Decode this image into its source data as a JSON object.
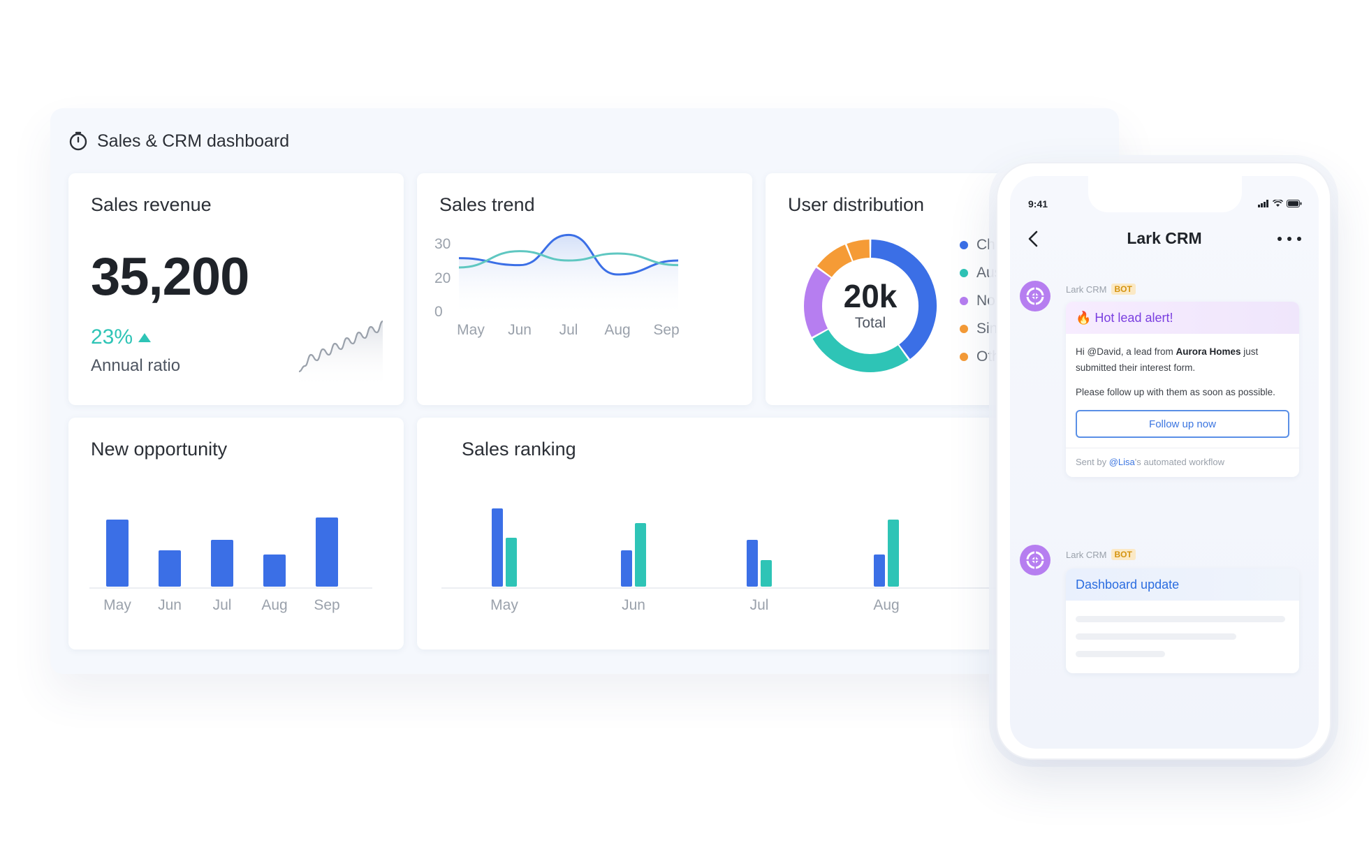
{
  "dashboard": {
    "title": "Sales & CRM dashboard",
    "icon": "timer-icon"
  },
  "revenue": {
    "title": "Sales revenue",
    "value": "35,200",
    "ratio": "23%",
    "ratio_label": "Annual ratio",
    "accent_color": "#2ec4b6"
  },
  "trend": {
    "title": "Sales trend"
  },
  "users": {
    "title": "User distribution",
    "center_value": "20k",
    "center_label": "Total",
    "legend": [
      {
        "label": "Chi",
        "color": "#3b6fe6"
      },
      {
        "label": "Aus",
        "color": "#2ec4b6"
      },
      {
        "label": "Nor",
        "color": "#b67ef0"
      },
      {
        "label": "Sin",
        "color": "#f59b36"
      },
      {
        "label": "Oth",
        "color": "#f59b36"
      }
    ]
  },
  "opportunity": {
    "title": "New opportunity"
  },
  "ranking": {
    "title": "Sales ranking"
  },
  "chart_data": [
    {
      "type": "line",
      "categories": [
        "May",
        "Jun",
        "Jul",
        "Aug",
        "Sep"
      ],
      "ylim": [
        0,
        30
      ],
      "yticks": [
        30,
        20,
        0
      ],
      "series": [
        {
          "color": "#3b6fe6",
          "values": [
            22,
            19,
            32,
            15,
            21
          ]
        },
        {
          "color": "#5fc7c1",
          "values": [
            18,
            25,
            21,
            24,
            19
          ]
        }
      ]
    },
    {
      "type": "pie",
      "slices": [
        {
          "label": "Chi",
          "value": 40,
          "color": "#3b6fe6"
        },
        {
          "label": "Aus",
          "value": 27,
          "color": "#2ec4b6"
        },
        {
          "label": "Nor",
          "value": 18,
          "color": "#b67ef0"
        },
        {
          "label": "Sin",
          "value": 9,
          "color": "#f59b36"
        },
        {
          "label": "Oth",
          "value": 6,
          "color": "#f59b36"
        }
      ]
    },
    {
      "type": "bar",
      "categories": [
        "May",
        "Jun",
        "Jul",
        "Aug",
        "Sep"
      ],
      "series": [
        {
          "color": "#3b6fe6",
          "values": [
            96,
            52,
            67,
            46,
            99
          ]
        }
      ],
      "ylim": [
        0,
        100
      ]
    },
    {
      "type": "bar",
      "categories": [
        "May",
        "Jun",
        "Jul",
        "Aug"
      ],
      "series": [
        {
          "color": "#3b6fe6",
          "values": [
            112,
            52,
            67,
            46
          ]
        },
        {
          "color": "#2ec4b6",
          "values": [
            70,
            91,
            38,
            96
          ]
        }
      ],
      "ylim": [
        0,
        120
      ]
    },
    {
      "type": "line",
      "series": [
        {
          "color": "#9aa1ab",
          "values": [
            2,
            3,
            5,
            4,
            6,
            5,
            7,
            6,
            8,
            7,
            9,
            8,
            10,
            9,
            11
          ]
        }
      ]
    }
  ],
  "phone": {
    "time": "9:41",
    "title": "Lark CRM",
    "bot_name": "Lark CRM",
    "bot_badge": "BOT",
    "alert_title": "🔥 Hot lead alert!",
    "alert_text_1": "Hi @David, a lead from ",
    "alert_company": "Aurora Homes",
    "alert_text_2": " just submitted their interest form.",
    "alert_text_3": "Please follow up with them as soon as possible.",
    "follow_button": "Follow up now",
    "footer_prefix": "Sent by ",
    "footer_mention": "@Lisa",
    "footer_suffix": "'s automated workflow",
    "update_title": "Dashboard update"
  }
}
